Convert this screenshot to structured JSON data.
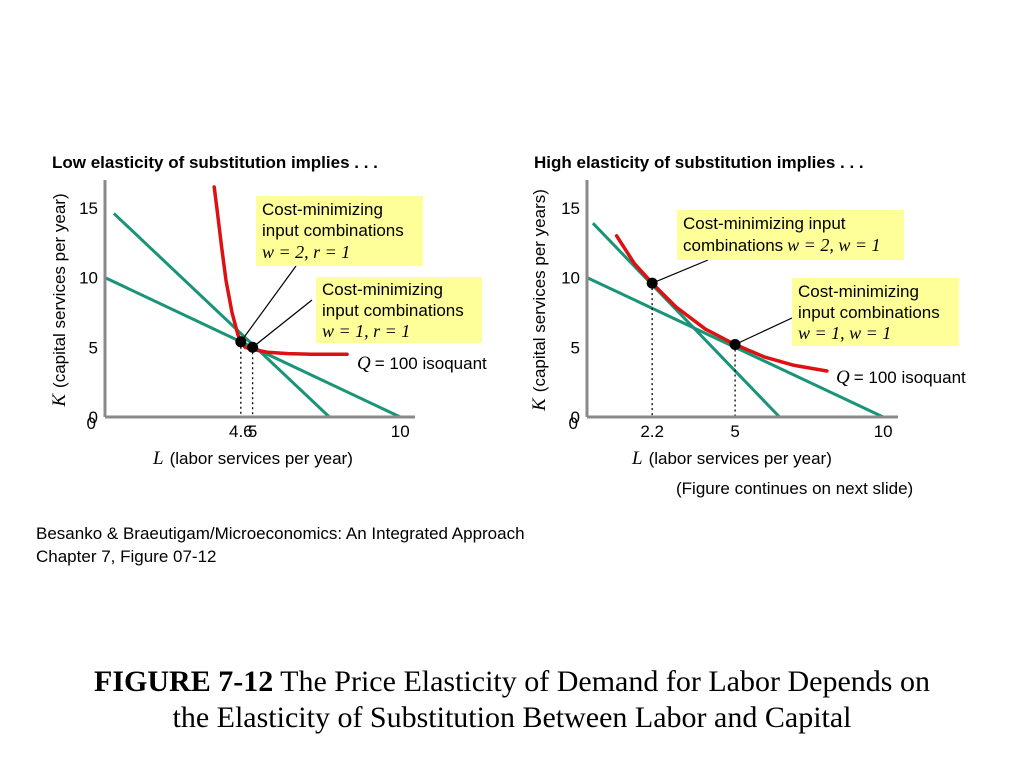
{
  "colors": {
    "isoquant": "#dd1111",
    "isocost": "#1a9478",
    "callout_fill": "#ffff99",
    "axis": "#8a8a8a",
    "point": "#000000"
  },
  "chart_data": [
    {
      "type": "line",
      "title": "Low elasticity of substitution implies . . .",
      "ylabel_var": "K",
      "ylabel": "(capital services per year)",
      "xlabel_var": "L",
      "xlabel": "(labor services per year)",
      "xlim": [
        0,
        10.5
      ],
      "ylim": [
        0,
        17
      ],
      "x_ticks": [
        {
          "v": 4.6,
          "label": "4.6"
        },
        {
          "v": 5,
          "label": "5"
        },
        {
          "v": 10,
          "label": "10"
        }
      ],
      "y_ticks": [
        {
          "v": 0,
          "label": "0"
        },
        {
          "v": 5,
          "label": "5"
        },
        {
          "v": 10,
          "label": "10"
        },
        {
          "v": 15,
          "label": "15"
        }
      ],
      "grid": false,
      "isocost_lines": [
        {
          "x": [
            0,
            10
          ],
          "y": [
            10,
            0
          ],
          "w": 1,
          "r": 1
        },
        {
          "x": [
            0.3,
            7.6
          ],
          "y": [
            14.6,
            0
          ],
          "w": 2,
          "r": 1
        }
      ],
      "isoquant": {
        "x": [
          3.7,
          3.8,
          3.95,
          4.1,
          4.3,
          4.5,
          4.6,
          4.75,
          5.0,
          5.5,
          6.2,
          7.0,
          8.2
        ],
        "y": [
          16.5,
          14.8,
          12.2,
          9.8,
          7.5,
          5.9,
          5.4,
          5.0,
          4.85,
          4.65,
          4.55,
          4.5,
          4.5
        ],
        "label_var": "Q",
        "label": "= 100 isoquant"
      },
      "points": [
        {
          "x": 4.6,
          "y": 5.4,
          "dotted": true
        },
        {
          "x": 5,
          "y": 5,
          "dotted": true
        }
      ],
      "callouts": [
        {
          "lines": [
            "Cost-minimizing",
            "input combinations"
          ],
          "params": "w = 2, r = 1",
          "point": 0
        },
        {
          "lines": [
            "Cost-minimizing",
            "input combinations"
          ],
          "params": "w = 1, r = 1",
          "point": 1
        }
      ]
    },
    {
      "type": "line",
      "title": "High elasticity of substitution implies . . .",
      "ylabel_var": "K",
      "ylabel": "(capital services per years)",
      "xlabel_var": "L",
      "xlabel": "(labor services per year)",
      "xlim": [
        0,
        10.5
      ],
      "ylim": [
        0,
        17
      ],
      "x_ticks": [
        {
          "v": 2.2,
          "label": "2.2"
        },
        {
          "v": 5,
          "label": "5"
        },
        {
          "v": 10,
          "label": "10"
        }
      ],
      "y_ticks": [
        {
          "v": 0,
          "label": "0"
        },
        {
          "v": 5,
          "label": "5"
        },
        {
          "v": 10,
          "label": "10"
        },
        {
          "v": 15,
          "label": "15"
        }
      ],
      "grid": false,
      "isocost_lines": [
        {
          "x": [
            0,
            10
          ],
          "y": [
            10,
            0
          ],
          "w": 1,
          "r": 1
        },
        {
          "x": [
            0.2,
            6.5
          ],
          "y": [
            13.9,
            0
          ],
          "w": 2,
          "r": 1
        }
      ],
      "isoquant": {
        "x": [
          1.0,
          1.6,
          2.2,
          3.0,
          4.0,
          5.0,
          6.0,
          7.0,
          8.1
        ],
        "y": [
          13.0,
          11.0,
          9.6,
          7.9,
          6.3,
          5.2,
          4.3,
          3.7,
          3.3
        ],
        "label_var": "Q",
        "label": "= 100 isoquant"
      },
      "points": [
        {
          "x": 2.2,
          "y": 9.6,
          "dotted": true
        },
        {
          "x": 5,
          "y": 5.2,
          "dotted": true
        }
      ],
      "callouts": [
        {
          "lines": [
            "Cost-minimizing input"
          ],
          "last_prefix": "combinations",
          "params": "w = 2, w = 1",
          "point": 0
        },
        {
          "lines": [
            "Cost-minimizing",
            "input combinations"
          ],
          "params": "w = 1, w = 1",
          "point": 1
        }
      ]
    }
  ],
  "continues_note": "(Figure continues on next slide)",
  "credit": {
    "line1": "Besanko & Braeutigam/Microeconomics: An Integrated Approach",
    "line2": "Chapter 7, Figure 07-12"
  },
  "caption": {
    "label": "FIGURE 7-12",
    "text_line1": " The Price Elasticity of Demand for Labor Depends on",
    "text_line2": "the Elasticity of Substitution Between Labor and Capital"
  }
}
